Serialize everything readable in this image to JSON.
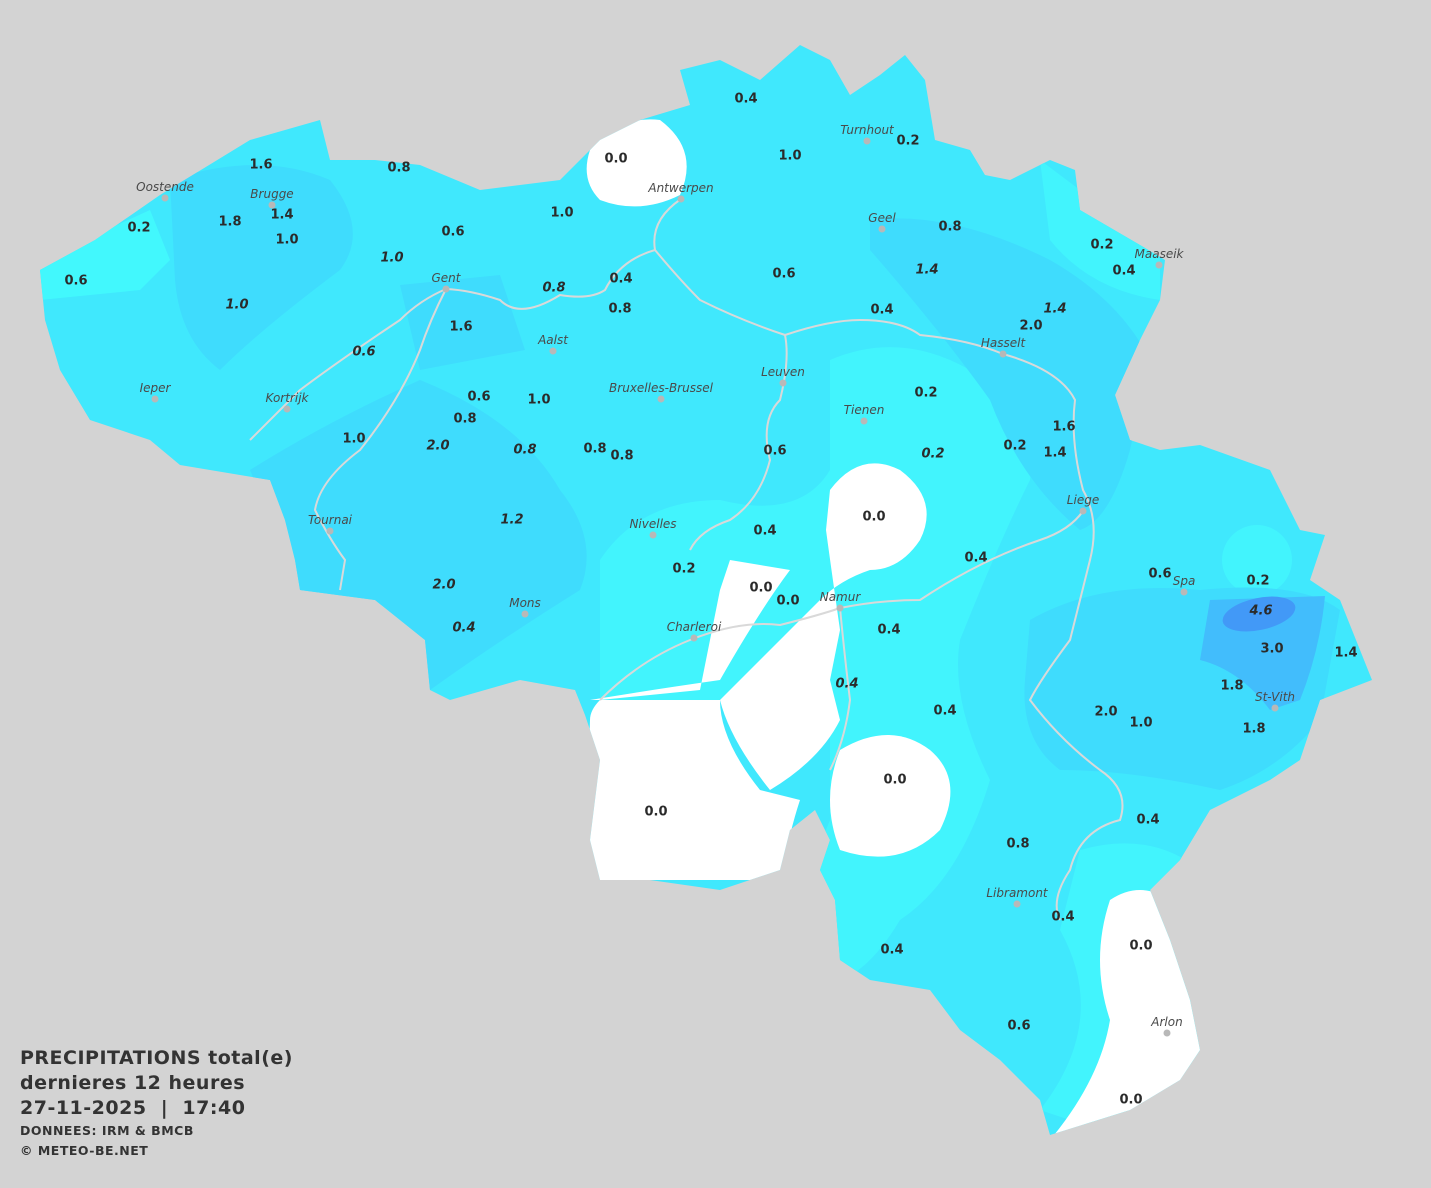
{
  "title": {
    "line1": "PRECIPITATIONS total(e)",
    "line2": "dernieres 12 heures",
    "line3": "27-11-2025  |  17:40",
    "source": "DONNEES: IRM & BMCB",
    "copyright": "© METEO-BE.NET"
  },
  "colors": {
    "background": "#d3d3d3",
    "zero": "#ffffff",
    "light": "#42f0fd",
    "base": "#40e8fd",
    "medium": "#3fdcfd",
    "heavy": "#42bdfc",
    "max": "#4299f7",
    "rivers": "#d9d9d9"
  },
  "cities": [
    "Oostende",
    "Brugge",
    "Antwerpen",
    "Turnhout",
    "Geel",
    "Maaseik",
    "Gent",
    "Aalst",
    "Hasselt",
    "Leuven",
    "Bruxelles-Brussel",
    "Ieper",
    "Kortrijk",
    "Tienen",
    "Liege",
    "Tournai",
    "Nivelles",
    "Spa",
    "Namur",
    "Mons",
    "Charleroi",
    "St-Vith",
    "Libramont",
    "Arlon"
  ],
  "values": [
    "0.4",
    "1.0",
    "0.2",
    "0.0",
    "1.6",
    "0.8",
    "1.4",
    "1.8",
    "0.2",
    "1.0",
    "1.0",
    "0.6",
    "0.8",
    "0.2",
    "0.4",
    "0.6",
    "1.0",
    "1.4",
    "0.8",
    "0.4",
    "0.8",
    "0.6",
    "1.0",
    "1.6",
    "0.4",
    "1.4",
    "2.0",
    "0.6",
    "0.2",
    "0.6",
    "1.0",
    "0.8",
    "1.6",
    "1.0",
    "2.0",
    "0.8",
    "0.8",
    "0.8",
    "0.6",
    "0.2",
    "0.2",
    "1.4",
    "0.0",
    "1.2",
    "0.4",
    "0.4",
    "0.2",
    "0.6",
    "0.2",
    "0.0",
    "0.0",
    "2.0",
    "4.6",
    "0.4",
    "0.4",
    "3.0",
    "1.4",
    "0.4",
    "1.8",
    "0.4",
    "2.0",
    "1.0",
    "1.8",
    "0.0",
    "0.0",
    "0.4",
    "0.8",
    "0.4",
    "0.0",
    "0.4",
    "0.6",
    "0.0"
  ]
}
